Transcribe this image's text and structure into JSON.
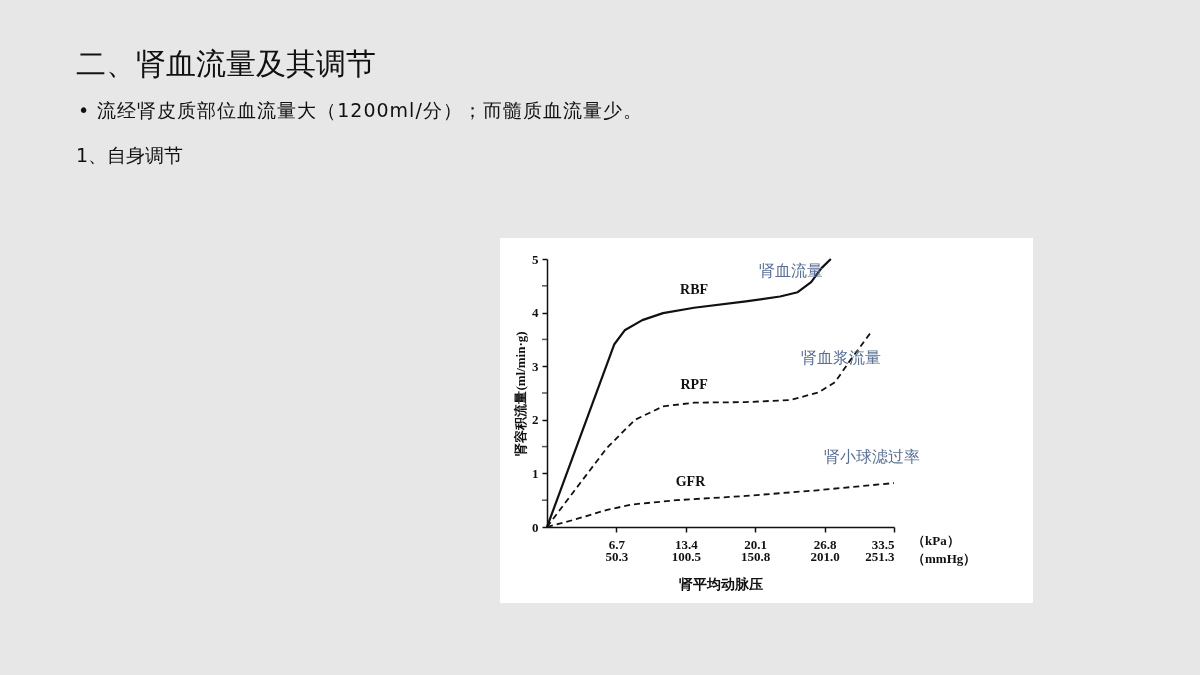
{
  "chart_data": {
    "type": "line",
    "title": "二、肾血流量及其调节",
    "subtitle": "• 流经肾皮质部位血流量大（1200ml/分）；而髓质血流量少。",
    "xlabel": "肾平均动脉压",
    "ylabel": "肾容积流量(ml/min·g)",
    "xlim": [
      0,
      33.5
    ],
    "ylim": [
      0,
      5
    ],
    "xticks": [
      6.7,
      13.4,
      20.1,
      26.8,
      33.5
    ],
    "x2lim": [
      0,
      251.3
    ],
    "x2ticks": [
      50.3,
      100.5,
      150.8,
      {
        "value": 201.0,
        "label": "201.0"
      },
      251.3
    ],
    "yticks": [
      0,
      {
        "value": 0.5,
        "label": null
      },
      1,
      {
        "value": 1.5,
        "label": null
      },
      2,
      {
        "value": 2.5,
        "label": null
      },
      3,
      {
        "value": 3.5,
        "label": null
      },
      4,
      {
        "value": 4.5,
        "label": null
      },
      5
    ],
    "grid": false,
    "marker": "none",
    "series": [
      {
        "name": "RBF",
        "color": "#111111",
        "line_style": "solid",
        "x": [
          0,
          6.5,
          7.5,
          9.2,
          11.2,
          14.2,
          19.2,
          22.5,
          24.2,
          25.5,
          26.5,
          27.4
        ],
        "values": [
          0,
          3.41,
          3.67,
          3.86,
          3.99,
          4.09,
          4.21,
          4.3,
          4.38,
          4.57,
          4.83,
          5.0
        ]
      },
      {
        "name": "RPF",
        "color": "#111111",
        "line_style": "dashed",
        "x": [
          0,
          2.5,
          5.8,
          8.5,
          11.2,
          14.2,
          19.2,
          23.5,
          26.2,
          27.8,
          29.2,
          31.3
        ],
        "values": [
          0,
          0.64,
          1.48,
          2.0,
          2.25,
          2.32,
          2.33,
          2.37,
          2.51,
          2.7,
          3.09,
          3.64
        ]
      },
      {
        "name": "GFR",
        "color": "#111111",
        "line_style": "dashed",
        "x": [
          0,
          2.5,
          5.8,
          8.2,
          12.5,
          19.2,
          25.8,
          33.5
        ],
        "values": [
          0,
          0.13,
          0.32,
          0.42,
          0.5,
          0.58,
          0.68,
          0.82
        ]
      }
    ],
    "annotations": [
      "1、自身调节",
      "（kPa）",
      "（mmHg）",
      "肾血流量",
      "肾血浆流量",
      "肾小球滤过率"
    ]
  }
}
